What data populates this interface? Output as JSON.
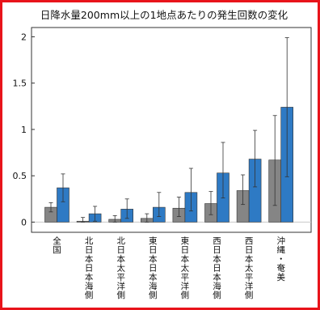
{
  "chart_data": {
    "type": "bar",
    "title": "日降水量200mm以上の1地点あたりの発生回数の変化",
    "xlabel": "",
    "ylabel": "",
    "ylim": [
      -0.11,
      2.1
    ],
    "yticks": [
      0,
      0.5,
      1,
      1.5,
      2
    ],
    "ytick_labels": [
      "0",
      "0.5",
      "1",
      "1.5",
      "2"
    ],
    "grid": false,
    "legend": "none",
    "categories": [
      "全国",
      "北日本日本海側",
      "北日本太平洋側",
      "東日本日本海側",
      "東日本太平洋側",
      "西日本日本海側",
      "西日本太平洋側",
      "沖縄・奄美"
    ],
    "series": [
      {
        "color": "#858585",
        "values": [
          0.16,
          0.01,
          0.03,
          0.04,
          0.15,
          0.2,
          0.34,
          0.67
        ],
        "err_low": [
          0.11,
          0.0,
          0.0,
          0.0,
          0.06,
          0.08,
          0.19,
          0.18
        ],
        "err_high": [
          0.21,
          0.05,
          0.07,
          0.09,
          0.27,
          0.33,
          0.51,
          1.15
        ]
      },
      {
        "color": "#2e7ac4",
        "values": [
          0.37,
          0.09,
          0.14,
          0.16,
          0.32,
          0.53,
          0.68,
          1.24
        ],
        "err_low": [
          0.22,
          0.01,
          0.04,
          0.06,
          0.12,
          0.26,
          0.38,
          0.49
        ],
        "err_high": [
          0.52,
          0.17,
          0.25,
          0.32,
          0.58,
          0.86,
          0.99,
          1.99
        ]
      }
    ]
  }
}
